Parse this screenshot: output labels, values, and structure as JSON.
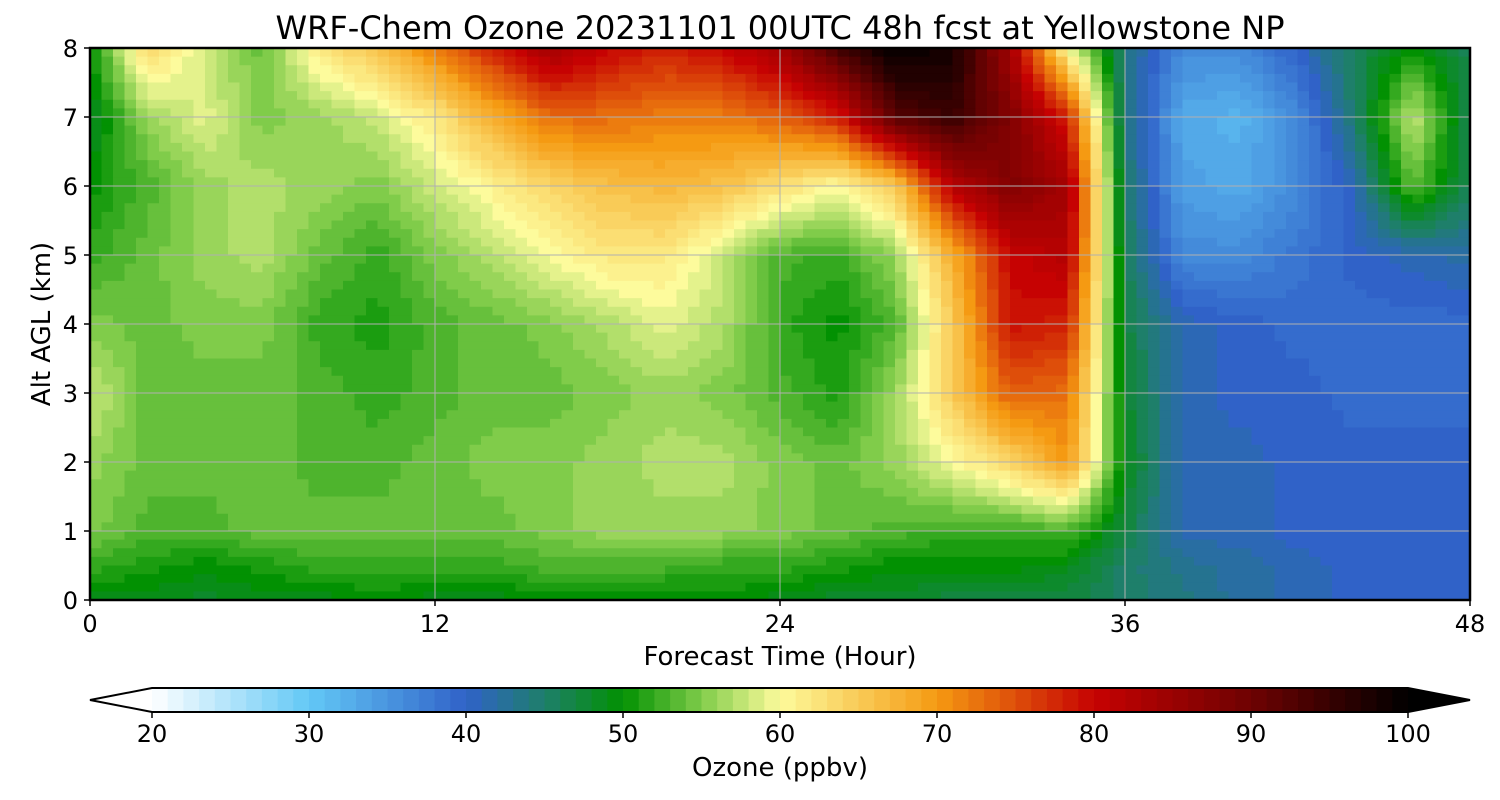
{
  "chart_data": {
    "type": "heatmap",
    "title": "WRF-Chem Ozone  20231101 00UTC 48h fcst at Yellowstone NP",
    "xlabel": "Forecast Time (Hour)",
    "ylabel": "Alt AGL (km)",
    "xlim": [
      0,
      48
    ],
    "ylim": [
      0,
      8
    ],
    "x_ticks": [
      0,
      12,
      24,
      36,
      48
    ],
    "y_ticks": [
      0,
      1,
      2,
      3,
      4,
      5,
      6,
      7,
      8
    ],
    "grid": true,
    "colorbar": {
      "label": "Ozone  (ppbv)",
      "range": [
        20,
        100
      ],
      "ticks": [
        20,
        30,
        40,
        50,
        60,
        70,
        80,
        90,
        100
      ],
      "extend": "both",
      "orientation": "horizontal",
      "placement": "bottom",
      "color_stops": [
        {
          "value": 20,
          "color": "#ffffff"
        },
        {
          "value": 30,
          "color": "#62c8f6"
        },
        {
          "value": 40,
          "color": "#3062c8"
        },
        {
          "value": 45,
          "color": "#1e7f6a"
        },
        {
          "value": 50,
          "color": "#029102"
        },
        {
          "value": 55,
          "color": "#80cc4a"
        },
        {
          "value": 60,
          "color": "#fdfb9c"
        },
        {
          "value": 70,
          "color": "#f59a12"
        },
        {
          "value": 80,
          "color": "#c60202"
        },
        {
          "value": 90,
          "color": "#6e0202"
        },
        {
          "value": 100,
          "color": "#000000"
        }
      ]
    },
    "x": [
      0,
      2,
      4,
      6,
      8,
      10,
      12,
      14,
      16,
      18,
      20,
      22,
      24,
      26,
      28,
      30,
      32,
      34,
      36,
      38,
      40,
      42,
      44,
      46,
      48
    ],
    "y": [
      0,
      0.5,
      1,
      2,
      3,
      4,
      5,
      6,
      7,
      8
    ],
    "z": [
      [
        49,
        49,
        48,
        49,
        49,
        50,
        49,
        49,
        50,
        50,
        49,
        50,
        49,
        48,
        48,
        47,
        47,
        47,
        45,
        44,
        42,
        41,
        40,
        40,
        40
      ],
      [
        52,
        51,
        50,
        51,
        52,
        52,
        52,
        52,
        53,
        53,
        53,
        52,
        52,
        51,
        50,
        50,
        50,
        49,
        45,
        43,
        42,
        41,
        40,
        40,
        40
      ],
      [
        55,
        53,
        53,
        54,
        54,
        54,
        54,
        54,
        55,
        56,
        56,
        56,
        55,
        54,
        53,
        52,
        52,
        53,
        47,
        41,
        41,
        40,
        40,
        40,
        40
      ],
      [
        56,
        54,
        54,
        54,
        53,
        53,
        54,
        55,
        55,
        56,
        57,
        57,
        55,
        54,
        56,
        60,
        64,
        70,
        49,
        41,
        41,
        40,
        40,
        40,
        40
      ],
      [
        58,
        54,
        54,
        54,
        53,
        52,
        53,
        54,
        54,
        55,
        56,
        55,
        53,
        51,
        56,
        65,
        74,
        73,
        48,
        41,
        40,
        40,
        39,
        39,
        39
      ],
      [
        55,
        54,
        55,
        55,
        52,
        51,
        53,
        54,
        55,
        57,
        59,
        57,
        52,
        50,
        53,
        65,
        79,
        78,
        47,
        41,
        40,
        39,
        39,
        39,
        39
      ],
      [
        52,
        54,
        56,
        57,
        54,
        52,
        55,
        57,
        60,
        62,
        62,
        58,
        53,
        52,
        56,
        68,
        80,
        82,
        46,
        36,
        36,
        38,
        40,
        41,
        42
      ],
      [
        50,
        53,
        56,
        57,
        56,
        55,
        58,
        61,
        64,
        66,
        67,
        66,
        63,
        60,
        65,
        82,
        88,
        84,
        45,
        34,
        33,
        36,
        41,
        54,
        46
      ],
      [
        48,
        56,
        59,
        55,
        56,
        58,
        62,
        68,
        73,
        73,
        72,
        72,
        74,
        78,
        92,
        95,
        88,
        78,
        44,
        33,
        32,
        36,
        45,
        58,
        46
      ],
      [
        50,
        64,
        58,
        54,
        62,
        66,
        72,
        78,
        84,
        80,
        78,
        80,
        84,
        94,
        100,
        98,
        84,
        60,
        44,
        36,
        36,
        40,
        46,
        50,
        46
      ]
    ]
  }
}
